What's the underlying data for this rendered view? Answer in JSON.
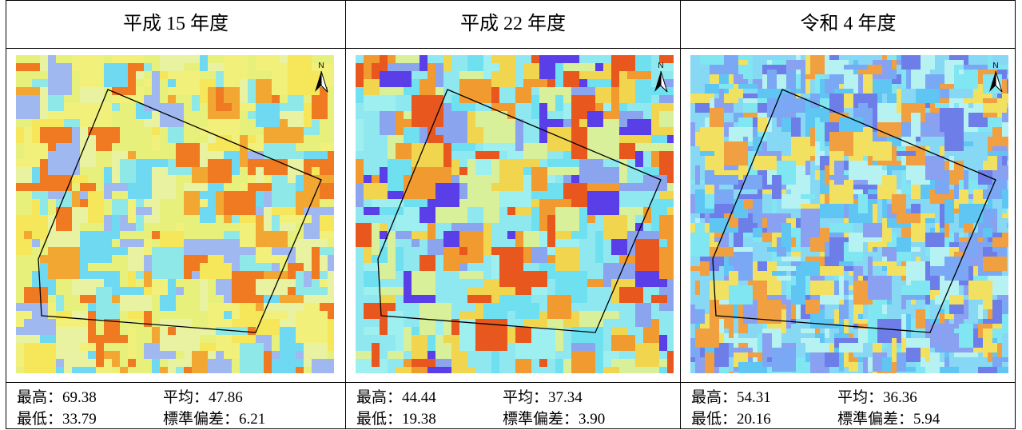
{
  "columns": [
    {
      "title": "平成 15 年度",
      "north": "N",
      "stats": [
        [
          "最高：69.38",
          "平均：47.86"
        ],
        [
          "最低：33.79",
          "標準偏差：6.21"
        ]
      ]
    },
    {
      "title": "平成 22 年度",
      "north": "N",
      "stats": [
        [
          "最高：44.44",
          "平均：37.34"
        ],
        [
          "最低：19.38",
          "標準偏差：3.90"
        ]
      ]
    },
    {
      "title": "令和 4 年度",
      "north": "N",
      "stats": [
        [
          "最高：54.31",
          "平均：36.36"
        ],
        [
          "最低：20.16",
          "標準偏差：5.94"
        ]
      ]
    }
  ]
}
